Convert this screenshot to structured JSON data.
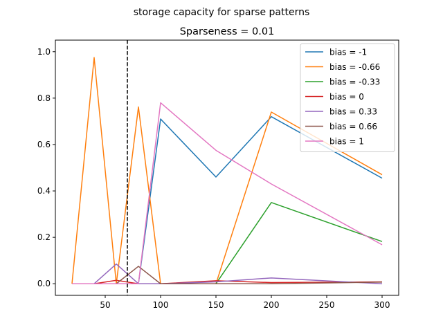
{
  "chart_data": {
    "type": "line",
    "suptitle": "storage capacity for sparse patterns",
    "title": "Sparseness = 0.01",
    "xlabel": "",
    "ylabel": "",
    "xlim": [
      5,
      315
    ],
    "ylim": [
      -0.05,
      1.05
    ],
    "xticks": [
      50,
      100,
      150,
      200,
      250,
      300
    ],
    "yticks": [
      0.0,
      0.2,
      0.4,
      0.6,
      0.8,
      1.0
    ],
    "ytick_labels": [
      "0.0",
      "0.2",
      "0.4",
      "0.6",
      "0.8",
      "1.0"
    ],
    "vline": {
      "x": 70,
      "style": "dashed",
      "color": "#000000"
    },
    "legend_position": "top-right",
    "x": [
      20,
      40,
      60,
      80,
      100,
      150,
      200,
      300
    ],
    "series": [
      {
        "name": "bias = -1",
        "color": "#1f77b4",
        "values": [
          0.0,
          0.0,
          0.0,
          0.0,
          0.71,
          0.46,
          0.72,
          0.455
        ]
      },
      {
        "name": "bias = -0.66",
        "color": "#ff7f0e",
        "values": [
          0.0,
          0.975,
          0.0,
          0.762,
          0.0,
          0.0,
          0.74,
          0.47
        ]
      },
      {
        "name": "bias = -0.33",
        "color": "#2ca02c",
        "values": [
          0.0,
          0.0,
          0.0,
          0.0,
          0.0,
          0.0,
          0.35,
          0.182
        ]
      },
      {
        "name": "bias = 0",
        "color": "#d62728",
        "values": [
          0.0,
          0.0,
          0.015,
          0.0,
          0.0,
          0.013,
          0.005,
          0.008
        ]
      },
      {
        "name": "bias = 0.33",
        "color": "#9467bd",
        "values": [
          0.0,
          0.0,
          0.085,
          0.0,
          0.0,
          0.008,
          0.025,
          0.0
        ]
      },
      {
        "name": "bias = 0.66",
        "color": "#8c564b",
        "values": [
          0.0,
          0.0,
          0.0,
          0.075,
          0.0,
          0.0,
          0.0,
          0.007
        ]
      },
      {
        "name": "bias = 1",
        "color": "#e377c2",
        "values": [
          0.0,
          0.0,
          0.0,
          0.0,
          0.78,
          0.575,
          0.43,
          0.168
        ]
      }
    ]
  }
}
